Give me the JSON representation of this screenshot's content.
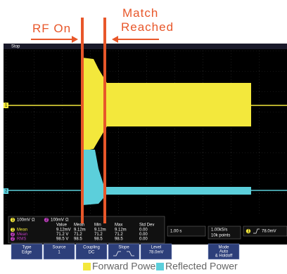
{
  "annotations": {
    "rf_on": "RF On",
    "match": [
      "Match",
      "Reached"
    ]
  },
  "scope": {
    "status": "Stop",
    "ch1_marker": "1",
    "ch2_marker": "2",
    "channel_bar": [
      {
        "id": "1",
        "scale": "100mV",
        "coupling": "Ω"
      },
      {
        "id": "2",
        "scale": "100mV",
        "coupling": "Ω"
      }
    ],
    "measurements": {
      "header": [
        "Value",
        "Mean",
        "Min",
        "Max",
        "Std Dev"
      ],
      "rows": [
        {
          "ch": "1",
          "label": "Mean",
          "cells": [
            "9.12mV",
            "9.12m",
            "9.12m",
            "9.12m",
            "0.00"
          ]
        },
        {
          "ch": "2",
          "label": "Mean",
          "cells": [
            "71.2 V",
            "71.2",
            "71.2",
            "71.2",
            "0.00"
          ]
        },
        {
          "ch": "2",
          "label": "RMS",
          "cells": [
            "98.5 V",
            "98.5",
            "98.5",
            "98.5",
            "0.00"
          ]
        }
      ]
    },
    "timebase": "1.00 s",
    "sample": [
      "1.00kS/s",
      "10k points"
    ],
    "trigger": {
      "ch": "1",
      "level": "78.0mV"
    },
    "menu": [
      {
        "label": "Type",
        "value": [
          "Edge"
        ]
      },
      {
        "label": "Source",
        "value": [
          "1"
        ]
      },
      {
        "label": "Coupling",
        "value": [
          "DC"
        ]
      },
      {
        "label": "Slope",
        "value": []
      },
      {
        "label": "Level",
        "value": [
          "78.0mV"
        ]
      },
      {
        "label": "Mode",
        "value": [
          "Auto",
          "& Holdoff"
        ]
      }
    ]
  },
  "legend": [
    {
      "name": "Forward Power",
      "color": "#f3e83c"
    },
    {
      "name": "Reflected Power",
      "color": "#5ccfdb"
    }
  ]
}
